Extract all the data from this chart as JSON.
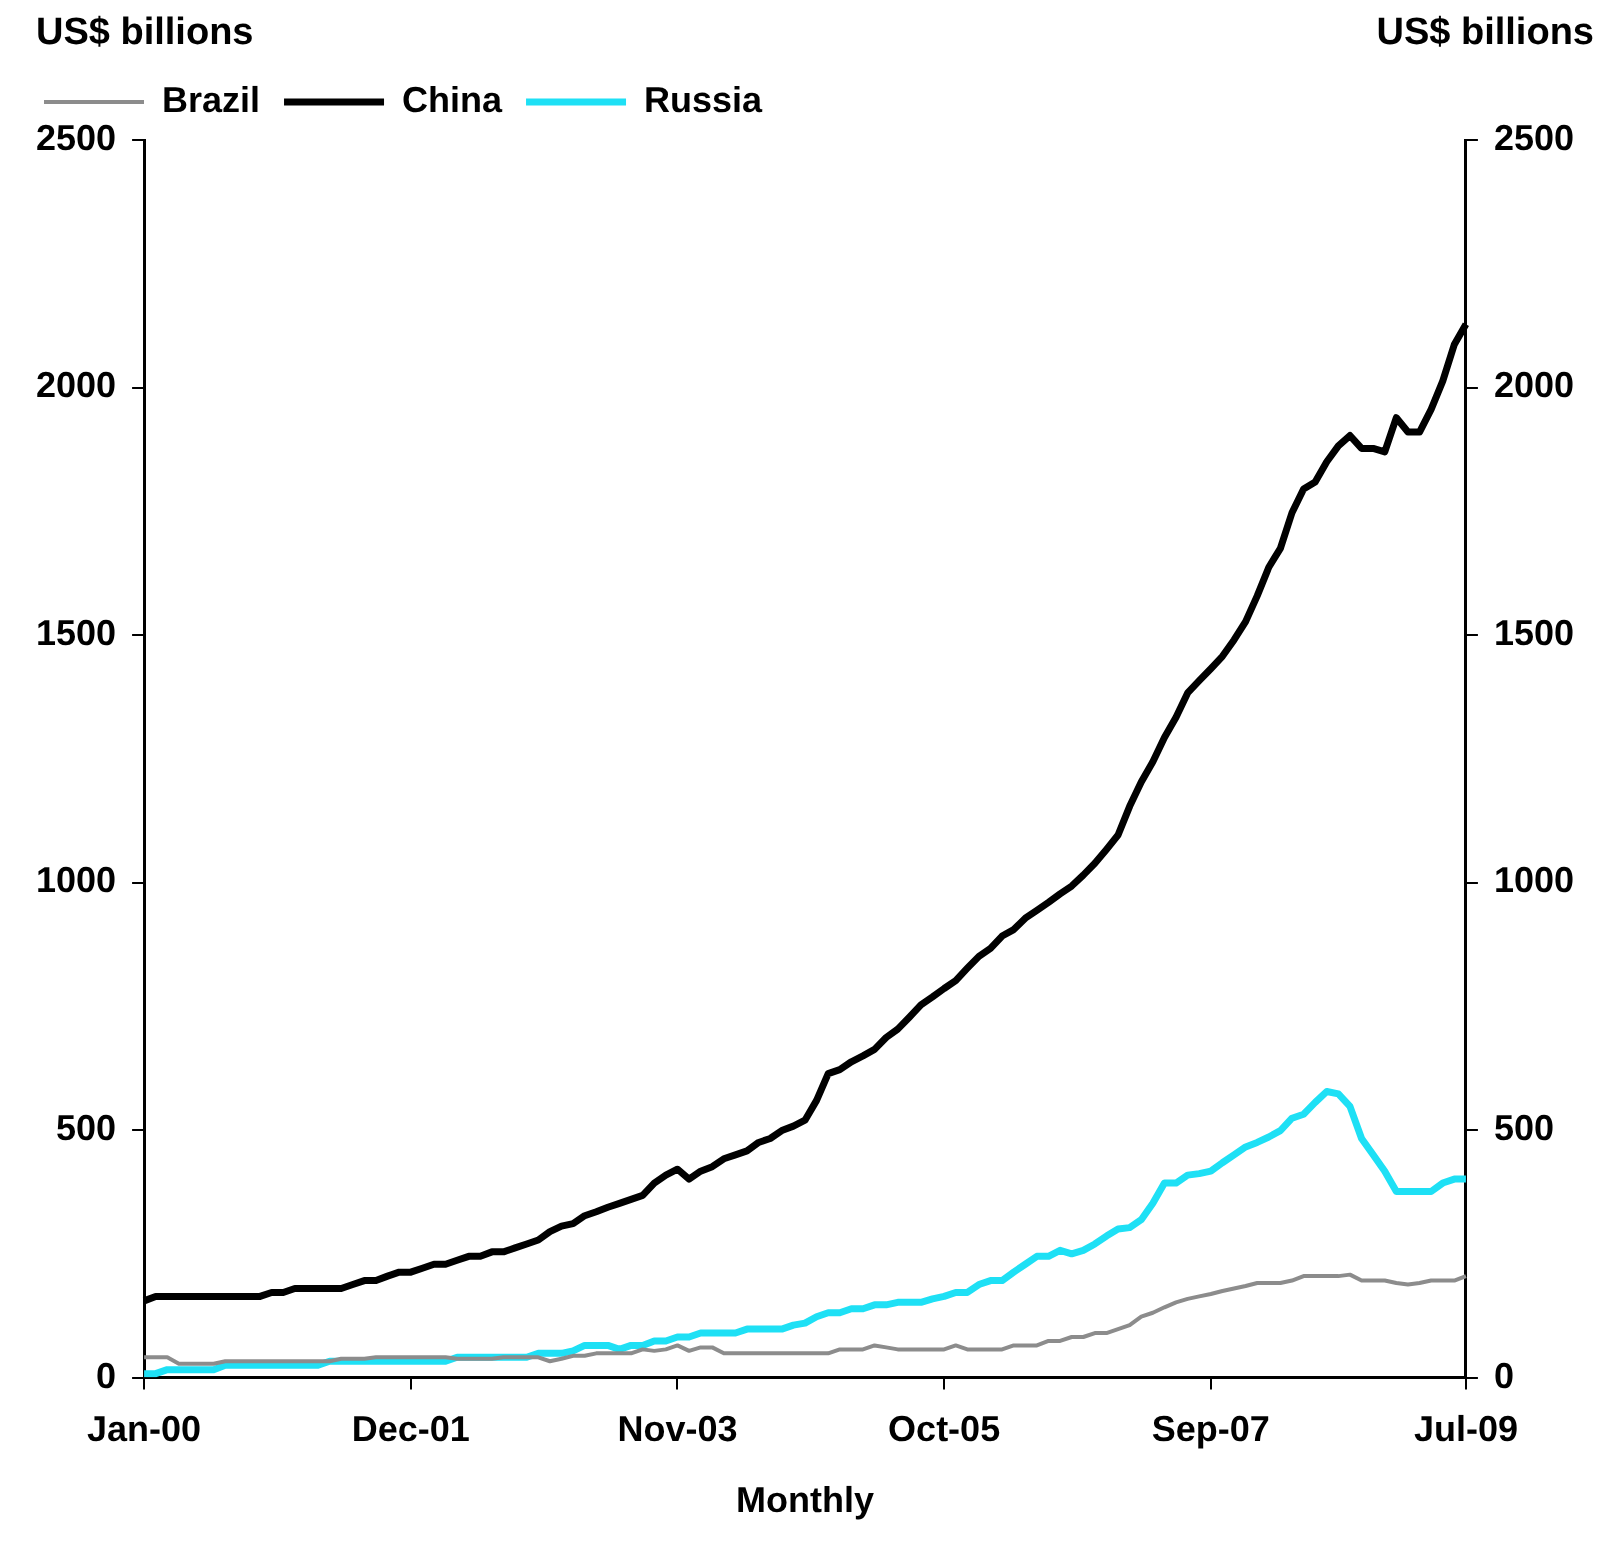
{
  "chart_data": {
    "type": "line",
    "xlabel": "Monthly",
    "ylabel": "US$ billions",
    "y2label": "US$ billions",
    "legend": "top left",
    "categories": [
      "Jan-00",
      null,
      null,
      null,
      null,
      null,
      null,
      null,
      null,
      null,
      null,
      null,
      null,
      null,
      null,
      null,
      null,
      null,
      null,
      null,
      null,
      null,
      null,
      "Dec-01",
      null,
      null,
      null,
      null,
      null,
      null,
      null,
      null,
      null,
      null,
      null,
      null,
      null,
      null,
      null,
      null,
      null,
      null,
      null,
      null,
      null,
      null,
      "Nov-03",
      null,
      null,
      null,
      null,
      null,
      null,
      null,
      null,
      null,
      null,
      null,
      null,
      null,
      null,
      null,
      null,
      null,
      null,
      null,
      null,
      null,
      null,
      "Oct-05",
      null,
      null,
      null,
      null,
      null,
      null,
      null,
      null,
      null,
      null,
      null,
      null,
      null,
      null,
      null,
      null,
      null,
      null,
      null,
      null,
      null,
      null,
      "Sep-07",
      null,
      null,
      null,
      null,
      null,
      null,
      null,
      null,
      null,
      null,
      null,
      null,
      null,
      null,
      null,
      null,
      null,
      null,
      null,
      null,
      null,
      "Jul-09"
    ],
    "series": [
      {
        "name": "Brazil",
        "color": "#8c8c8c",
        "values": [
          41,
          41,
          41,
          28,
          28,
          28,
          28,
          33,
          33,
          33,
          33,
          33,
          33,
          33,
          33,
          33,
          33,
          38,
          38,
          38,
          41,
          41,
          41,
          41,
          41,
          41,
          41,
          38,
          38,
          38,
          38,
          41,
          41,
          41,
          41,
          33,
          38,
          44,
          44,
          49,
          49,
          49,
          49,
          57,
          54,
          57,
          65,
          54,
          61,
          61,
          49,
          49,
          49,
          49,
          49,
          49,
          49,
          49,
          49,
          49,
          57,
          57,
          57,
          65,
          61,
          57,
          57,
          57,
          57,
          57,
          65,
          57,
          57,
          57,
          57,
          65,
          65,
          65,
          74,
          74,
          82,
          82,
          90,
          90,
          98,
          106,
          123,
          131,
          142,
          152,
          159,
          164,
          169,
          175,
          180,
          185,
          191,
          191,
          191,
          196,
          205,
          205,
          205,
          205,
          208,
          196,
          196,
          196,
          191,
          188,
          191,
          196,
          196,
          196,
          205
        ]
      },
      {
        "name": "China",
        "color": "#000000",
        "values": [
          155,
          164,
          164,
          164,
          164,
          164,
          164,
          164,
          164,
          164,
          164,
          172,
          172,
          180,
          180,
          180,
          180,
          180,
          188,
          196,
          196,
          205,
          213,
          213,
          221,
          229,
          229,
          237,
          245,
          245,
          254,
          254,
          262,
          270,
          278,
          295,
          306,
          311,
          327,
          335,
          344,
          352,
          360,
          368,
          393,
          409,
          421,
          401,
          417,
          426,
          442,
          450,
          458,
          475,
          483,
          499,
          508,
          520,
          560,
          614,
          622,
          638,
          650,
          663,
          687,
          704,
          728,
          753,
          769,
          786,
          802,
          827,
          851,
          867,
          892,
          905,
          928,
          944,
          960,
          977,
          993,
          1015,
          1039,
          1067,
          1096,
          1154,
          1203,
          1244,
          1293,
          1334,
          1383,
          1408,
          1432,
          1457,
          1490,
          1527,
          1579,
          1637,
          1675,
          1747,
          1795,
          1809,
          1850,
          1882,
          1903,
          1877,
          1877,
          1870,
          1939,
          1910,
          1910,
          1956,
          2013,
          2087,
          2128
        ]
      },
      {
        "name": "Russia",
        "color": "#1ee0f5",
        "values": [
          8,
          8,
          16,
          16,
          16,
          16,
          16,
          25,
          25,
          25,
          25,
          25,
          25,
          25,
          25,
          25,
          33,
          33,
          33,
          33,
          33,
          33,
          33,
          33,
          33,
          33,
          33,
          41,
          41,
          41,
          41,
          41,
          41,
          41,
          49,
          49,
          49,
          54,
          65,
          65,
          65,
          57,
          65,
          65,
          74,
          74,
          82,
          82,
          90,
          90,
          90,
          90,
          98,
          98,
          98,
          98,
          106,
          110,
          123,
          131,
          131,
          139,
          139,
          147,
          147,
          152,
          152,
          152,
          159,
          164,
          172,
          172,
          188,
          196,
          196,
          213,
          229,
          245,
          245,
          257,
          250,
          257,
          270,
          286,
          300,
          303,
          319,
          352,
          393,
          393,
          409,
          412,
          417,
          434,
          450,
          466,
          475,
          486,
          499,
          524,
          532,
          556,
          578,
          573,
          548,
          483,
          450,
          417,
          376,
          376,
          376,
          376,
          393,
          401,
          401
        ]
      }
    ],
    "ylim": [
      0,
      2500
    ],
    "yticks": [
      0,
      500,
      1000,
      1500,
      2000,
      2500
    ],
    "y2lim": [
      0,
      2500
    ],
    "y2ticks": [
      0,
      500,
      1000,
      1500,
      2000,
      2500
    ]
  }
}
